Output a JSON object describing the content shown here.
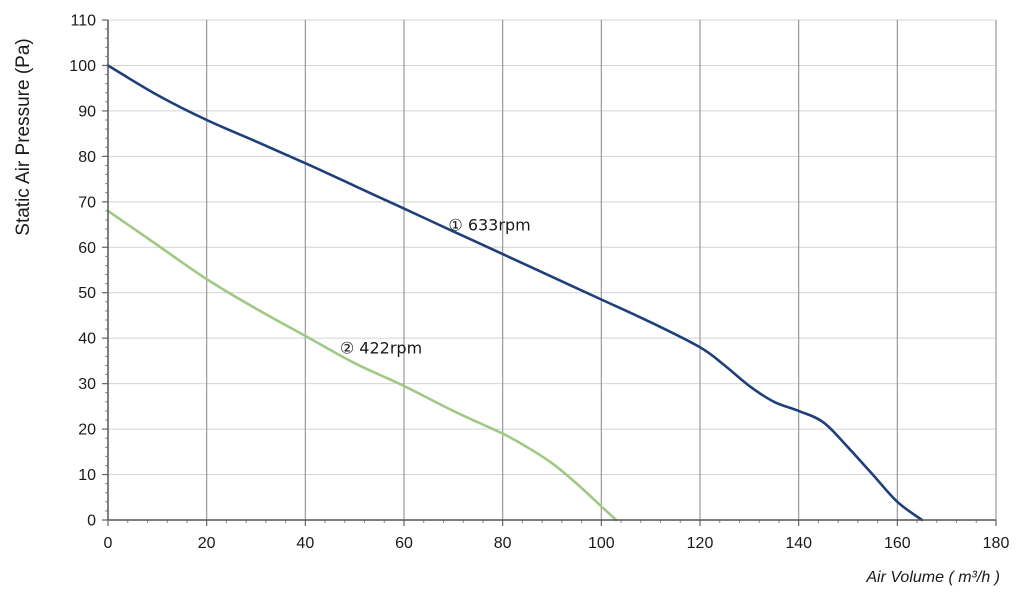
{
  "chart_data": {
    "type": "line",
    "title": "",
    "xlabel": "Air Volume ( m³/h )",
    "ylabel": "Static Air Pressure  (Pa)",
    "xlim": [
      0,
      180
    ],
    "ylim": [
      0,
      110
    ],
    "x_ticks": [
      0,
      20,
      40,
      60,
      80,
      100,
      120,
      140,
      160,
      180
    ],
    "y_ticks": [
      0,
      10,
      20,
      30,
      40,
      50,
      60,
      70,
      80,
      90,
      100,
      110
    ],
    "x_tick_labels": [
      "0",
      "20",
      "40",
      "60",
      "80",
      "100",
      "120",
      "140",
      "160",
      "180"
    ],
    "y_tick_labels": [
      "0",
      "10",
      "20",
      "30",
      "40",
      "50",
      "60",
      "70",
      "80",
      "90",
      "100",
      "110"
    ],
    "grid": {
      "vertical": true,
      "horizontal": true
    },
    "legend": "none",
    "series": [
      {
        "name": "① 633rpm",
        "color": "#1f3f7a",
        "label_at": [
          69,
          65
        ],
        "x": [
          0,
          10,
          20,
          30,
          40,
          50,
          60,
          70,
          80,
          90,
          100,
          110,
          120,
          125,
          130,
          135,
          140,
          145,
          150,
          155,
          160,
          165
        ],
        "y": [
          100,
          93.5,
          88,
          83.3,
          78.5,
          73.5,
          68.5,
          63.5,
          58.5,
          53.5,
          48.5,
          43.5,
          38,
          34,
          29.5,
          26,
          24,
          21.5,
          16,
          10,
          4,
          0
        ]
      },
      {
        "name": "② 422rpm",
        "color": "#9fc985",
        "label_at": [
          47,
          38
        ],
        "x": [
          0,
          10,
          20,
          30,
          40,
          50,
          60,
          70,
          80,
          85,
          90,
          95,
          100,
          103
        ],
        "y": [
          68,
          60.5,
          53,
          46.5,
          40.5,
          34.5,
          29.5,
          24,
          19,
          16,
          12.5,
          8,
          3,
          0
        ]
      }
    ]
  }
}
